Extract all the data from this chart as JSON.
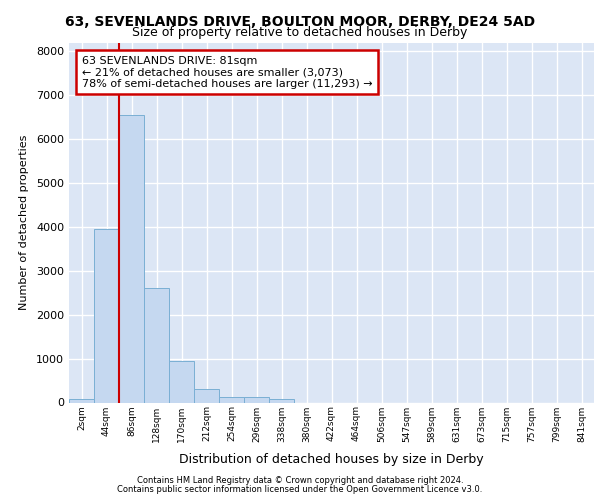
{
  "title_main": "63, SEVENLANDS DRIVE, BOULTON MOOR, DERBY, DE24 5AD",
  "title_sub": "Size of property relative to detached houses in Derby",
  "xlabel": "Distribution of detached houses by size in Derby",
  "ylabel": "Number of detached properties",
  "bin_labels": [
    "2sqm",
    "44sqm",
    "86sqm",
    "128sqm",
    "170sqm",
    "212sqm",
    "254sqm",
    "296sqm",
    "338sqm",
    "380sqm",
    "422sqm",
    "464sqm",
    "506sqm",
    "547sqm",
    "589sqm",
    "631sqm",
    "673sqm",
    "715sqm",
    "757sqm",
    "799sqm",
    "841sqm"
  ],
  "bar_values": [
    75,
    3950,
    6550,
    2600,
    950,
    310,
    130,
    120,
    90,
    0,
    0,
    0,
    0,
    0,
    0,
    0,
    0,
    0,
    0,
    0,
    0
  ],
  "bar_color": "#c5d8f0",
  "bar_edge_color": "#7aafd4",
  "vline_color": "#cc0000",
  "annotation_line1": "63 SEVENLANDS DRIVE: 81sqm",
  "annotation_line2": "← 21% of detached houses are smaller (3,073)",
  "annotation_line3": "78% of semi-detached houses are larger (11,293) →",
  "annotation_box_facecolor": "#ffffff",
  "annotation_box_edgecolor": "#cc0000",
  "bg_color": "#dce6f5",
  "grid_color": "#ffffff",
  "footer_line1": "Contains HM Land Registry data © Crown copyright and database right 2024.",
  "footer_line2": "Contains public sector information licensed under the Open Government Licence v3.0.",
  "ylim": [
    0,
    8200
  ],
  "yticks": [
    0,
    1000,
    2000,
    3000,
    4000,
    5000,
    6000,
    7000,
    8000
  ]
}
